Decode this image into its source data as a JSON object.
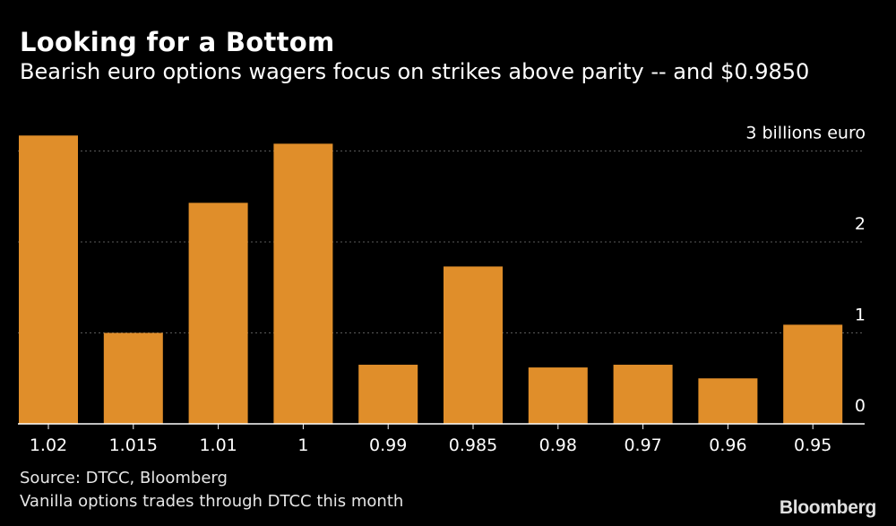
{
  "header": {
    "title": "Looking for a Bottom",
    "subtitle": "Bearish euro options wagers focus on strikes above parity -- and $0.9850"
  },
  "footer": {
    "source": "Source: DTCC, Bloomberg",
    "note": "Vanilla options trades through DTCC this month",
    "logo": "Bloomberg"
  },
  "chart_data": {
    "type": "bar",
    "title": "Looking for a Bottom",
    "subtitle": "Bearish euro options wagers focus on strikes above parity -- and $0.9850",
    "categories": [
      "1.02",
      "1.015",
      "1.01",
      "1",
      "0.99",
      "0.985",
      "0.98",
      "0.97",
      "0.96",
      "0.95"
    ],
    "values": [
      3.17,
      1.0,
      2.43,
      3.08,
      0.65,
      1.73,
      0.62,
      0.65,
      0.5,
      1.09
    ],
    "ylim": [
      0,
      3.2
    ],
    "yticks": [
      0,
      1,
      2,
      3
    ],
    "ytick_labels": [
      "0",
      "1",
      "2",
      "3 billions euro"
    ],
    "yaxis_position": "right",
    "grid": true,
    "bar_color": "#e08e2a",
    "grid_color": "#5a5a5a"
  }
}
